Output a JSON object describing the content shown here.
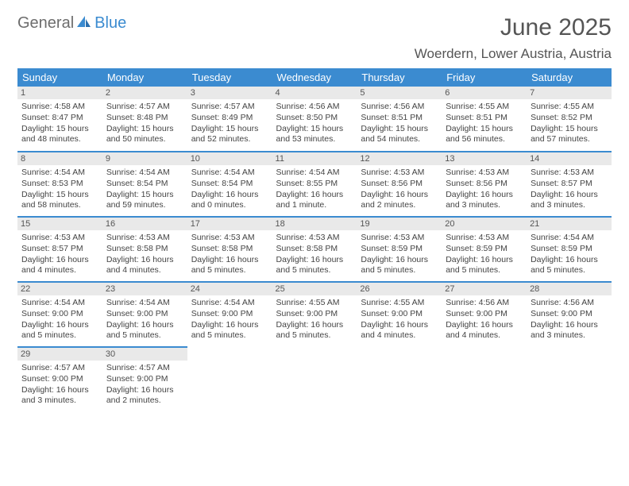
{
  "logo": {
    "text1": "General",
    "text2": "Blue"
  },
  "title": "June 2025",
  "location": "Woerdern, Lower Austria, Austria",
  "colors": {
    "header_bg": "#3b8bd0",
    "header_text": "#ffffff",
    "border": "#3b8bd0",
    "daynum_bg": "#e9e9e9",
    "body_text": "#444444",
    "title_text": "#555555"
  },
  "dayHeaders": [
    "Sunday",
    "Monday",
    "Tuesday",
    "Wednesday",
    "Thursday",
    "Friday",
    "Saturday"
  ],
  "grid": {
    "rows": 5,
    "cols": 7,
    "startOffset": 0,
    "daysInMonth": 30
  },
  "days": [
    {
      "n": 1,
      "sunrise": "4:58 AM",
      "sunset": "8:47 PM",
      "daylight": "15 hours and 48 minutes."
    },
    {
      "n": 2,
      "sunrise": "4:57 AM",
      "sunset": "8:48 PM",
      "daylight": "15 hours and 50 minutes."
    },
    {
      "n": 3,
      "sunrise": "4:57 AM",
      "sunset": "8:49 PM",
      "daylight": "15 hours and 52 minutes."
    },
    {
      "n": 4,
      "sunrise": "4:56 AM",
      "sunset": "8:50 PM",
      "daylight": "15 hours and 53 minutes."
    },
    {
      "n": 5,
      "sunrise": "4:56 AM",
      "sunset": "8:51 PM",
      "daylight": "15 hours and 54 minutes."
    },
    {
      "n": 6,
      "sunrise": "4:55 AM",
      "sunset": "8:51 PM",
      "daylight": "15 hours and 56 minutes."
    },
    {
      "n": 7,
      "sunrise": "4:55 AM",
      "sunset": "8:52 PM",
      "daylight": "15 hours and 57 minutes."
    },
    {
      "n": 8,
      "sunrise": "4:54 AM",
      "sunset": "8:53 PM",
      "daylight": "15 hours and 58 minutes."
    },
    {
      "n": 9,
      "sunrise": "4:54 AM",
      "sunset": "8:54 PM",
      "daylight": "15 hours and 59 minutes."
    },
    {
      "n": 10,
      "sunrise": "4:54 AM",
      "sunset": "8:54 PM",
      "daylight": "16 hours and 0 minutes."
    },
    {
      "n": 11,
      "sunrise": "4:54 AM",
      "sunset": "8:55 PM",
      "daylight": "16 hours and 1 minute."
    },
    {
      "n": 12,
      "sunrise": "4:53 AM",
      "sunset": "8:56 PM",
      "daylight": "16 hours and 2 minutes."
    },
    {
      "n": 13,
      "sunrise": "4:53 AM",
      "sunset": "8:56 PM",
      "daylight": "16 hours and 3 minutes."
    },
    {
      "n": 14,
      "sunrise": "4:53 AM",
      "sunset": "8:57 PM",
      "daylight": "16 hours and 3 minutes."
    },
    {
      "n": 15,
      "sunrise": "4:53 AM",
      "sunset": "8:57 PM",
      "daylight": "16 hours and 4 minutes."
    },
    {
      "n": 16,
      "sunrise": "4:53 AM",
      "sunset": "8:58 PM",
      "daylight": "16 hours and 4 minutes."
    },
    {
      "n": 17,
      "sunrise": "4:53 AM",
      "sunset": "8:58 PM",
      "daylight": "16 hours and 5 minutes."
    },
    {
      "n": 18,
      "sunrise": "4:53 AM",
      "sunset": "8:58 PM",
      "daylight": "16 hours and 5 minutes."
    },
    {
      "n": 19,
      "sunrise": "4:53 AM",
      "sunset": "8:59 PM",
      "daylight": "16 hours and 5 minutes."
    },
    {
      "n": 20,
      "sunrise": "4:53 AM",
      "sunset": "8:59 PM",
      "daylight": "16 hours and 5 minutes."
    },
    {
      "n": 21,
      "sunrise": "4:54 AM",
      "sunset": "8:59 PM",
      "daylight": "16 hours and 5 minutes."
    },
    {
      "n": 22,
      "sunrise": "4:54 AM",
      "sunset": "9:00 PM",
      "daylight": "16 hours and 5 minutes."
    },
    {
      "n": 23,
      "sunrise": "4:54 AM",
      "sunset": "9:00 PM",
      "daylight": "16 hours and 5 minutes."
    },
    {
      "n": 24,
      "sunrise": "4:54 AM",
      "sunset": "9:00 PM",
      "daylight": "16 hours and 5 minutes."
    },
    {
      "n": 25,
      "sunrise": "4:55 AM",
      "sunset": "9:00 PM",
      "daylight": "16 hours and 5 minutes."
    },
    {
      "n": 26,
      "sunrise": "4:55 AM",
      "sunset": "9:00 PM",
      "daylight": "16 hours and 4 minutes."
    },
    {
      "n": 27,
      "sunrise": "4:56 AM",
      "sunset": "9:00 PM",
      "daylight": "16 hours and 4 minutes."
    },
    {
      "n": 28,
      "sunrise": "4:56 AM",
      "sunset": "9:00 PM",
      "daylight": "16 hours and 3 minutes."
    },
    {
      "n": 29,
      "sunrise": "4:57 AM",
      "sunset": "9:00 PM",
      "daylight": "16 hours and 3 minutes."
    },
    {
      "n": 30,
      "sunrise": "4:57 AM",
      "sunset": "9:00 PM",
      "daylight": "16 hours and 2 minutes."
    }
  ],
  "labels": {
    "sunrise": "Sunrise:",
    "sunset": "Sunset:",
    "daylight": "Daylight:"
  }
}
